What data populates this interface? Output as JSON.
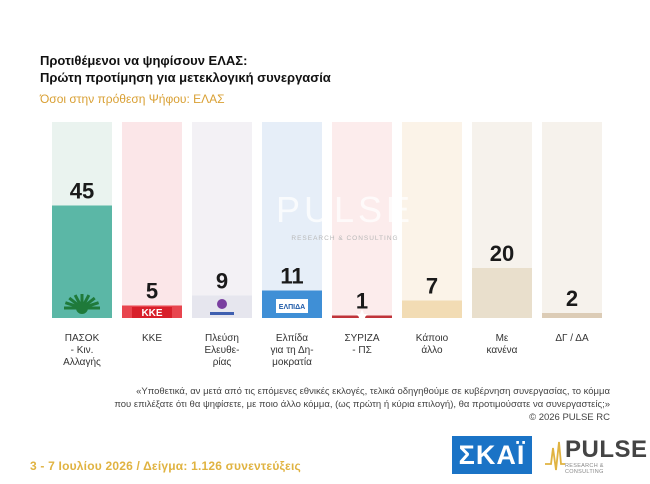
{
  "title_line1": "Προτιθέμενοι να ψηφίσουν ΕΛΑΣ:",
  "title_line2": "Πρώτη προτίμηση για μετεκλογική συνεργασία",
  "subtitle": "Όσοι στην πρόθεση Ψήφου: ΕΛΑΣ",
  "watermark": {
    "word": "PULSE",
    "tagline": "RESEARCH & CONSULTING"
  },
  "chart_data": {
    "type": "bar",
    "categories": [
      [
        "ΠΑΣΟΚ",
        "- Κιν.",
        "Αλλαγής"
      ],
      [
        "ΚΚΕ"
      ],
      [
        "Πλεύση",
        "Ελευθε-",
        "ρίας"
      ],
      [
        "Ελπίδα",
        "για τη Δη-",
        "μοκρατία"
      ],
      [
        "ΣΥΡΙΖΑ",
        "- ΠΣ"
      ],
      [
        "Κάποιο",
        "άλλο"
      ],
      [
        "Με",
        "κανένα"
      ],
      [
        "ΔΓ / ΔΑ"
      ]
    ],
    "values": [
      45,
      5,
      9,
      11,
      1,
      7,
      20,
      2
    ],
    "value_labels": [
      "45",
      "5",
      "9",
      "11",
      "1",
      "7",
      "20",
      "2"
    ],
    "ylim": [
      0,
      100
    ],
    "bar_colors": [
      "#5bb7a6",
      "#e8454e",
      "#e6e6ee",
      "#3f8fd6",
      "#c0343a",
      "#f2dcb4",
      "#e9dfcc",
      "#dcccb6"
    ],
    "bg_colors": [
      "#eaf3ef",
      "#fbe6e8",
      "#f3f1f5",
      "#e6eef8",
      "#fcecec",
      "#fbf3e8",
      "#f6f2ec",
      "#f6f2ec"
    ],
    "party_marks": [
      "ΚΚΕ",
      "ΕΛΠΙΔΑ"
    ]
  },
  "note_line1": "«Υποθετικά, αν μετά από τις επόμενες εθνικές εκλογές, τελικά οδηγηθούμε σε κυβέρνηση συνεργασίας, το κόμμα",
  "note_line2": "που επιλέξατε ότι θα ψηφίσετε, με ποιο άλλο κόμμα, (ως πρώτη ή κύρια επιλογή), θα προτιμούσατε να συνεργαστείς;»",
  "copyright": "©  2026  PULSE RC",
  "footer": "3 - 7  Ιουλίου 2026  /  Δείγμα:  1.126 συνεντεύξεις",
  "logo_skai": "ΣΚΑΪ",
  "logo_pulse": "PULSE",
  "logo_pulse_small": "RESEARCH & CONSULTING"
}
